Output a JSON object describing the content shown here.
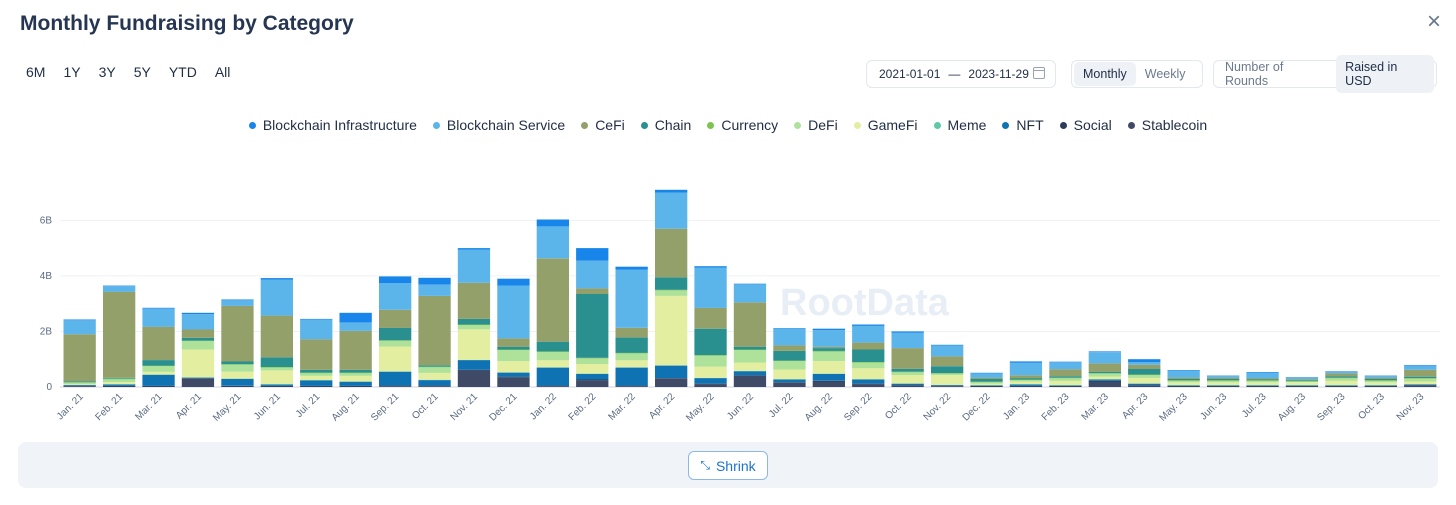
{
  "header": {
    "title": "Monthly Fundraising by Category",
    "close_icon": "×"
  },
  "ranges": [
    "6M",
    "1Y",
    "3Y",
    "5Y",
    "YTD",
    "All"
  ],
  "date_range": {
    "start": "2021-01-01",
    "separator": "—",
    "end": "2023-11-29"
  },
  "interval": {
    "monthly": "Monthly",
    "weekly": "Weekly",
    "selected": "Monthly"
  },
  "metric": {
    "rounds": "Number of Rounds",
    "usd": "Raised in USD",
    "selected": "Raised in USD"
  },
  "watermark": "RootData",
  "footer": {
    "shrink_label": "Shrink",
    "shrink_icon": "⤡"
  },
  "chart_data": {
    "type": "stacked-bar",
    "title": "Monthly Fundraising by Category",
    "xlabel": "",
    "ylabel": "",
    "ylim": [
      0,
      7200000000
    ],
    "yticks": [
      0,
      2000000000,
      4000000000,
      6000000000
    ],
    "ytick_labels": [
      "0",
      "2B",
      "4B",
      "6B"
    ],
    "categories": [
      "Jan. 21",
      "Feb. 21",
      "Mar. 21",
      "Apr. 21",
      "May. 21",
      "Jun. 21",
      "Jul. 21",
      "Aug. 21",
      "Sep. 21",
      "Oct. 21",
      "Nov. 21",
      "Dec. 21",
      "Jan. 22",
      "Feb. 22",
      "Mar. 22",
      "Apr. 22",
      "May. 22",
      "Jun. 22",
      "Jul. 22",
      "Aug. 22",
      "Sep. 22",
      "Oct. 22",
      "Nov. 22",
      "Dec. 22",
      "Jan. 23",
      "Feb. 23",
      "Mar. 23",
      "Apr. 23",
      "May. 23",
      "Jun. 23",
      "Jul. 23",
      "Aug. 23",
      "Sep. 23",
      "Oct. 23",
      "Nov. 23"
    ],
    "series": [
      {
        "name": "Stablecoin",
        "color": "#3f4a66",
        "values": [
          0.03,
          0.02,
          0.02,
          0.3,
          0.02,
          0.02,
          0.02,
          0.02,
          0.03,
          0.03,
          0.6,
          0.35,
          0.03,
          0.25,
          0.03,
          0.3,
          0.1,
          0.4,
          0.15,
          0.2,
          0.1,
          0.05,
          0.03,
          0.02,
          0.02,
          0.02,
          0.2,
          0.05,
          0.02,
          0.02,
          0.02,
          0.02,
          0.02,
          0.02,
          0.05
        ]
      },
      {
        "name": "Social",
        "color": "#2d3c5a",
        "values": [
          0.02,
          0.02,
          0.02,
          0.02,
          0.02,
          0.02,
          0.02,
          0.02,
          0.02,
          0.02,
          0.02,
          0.02,
          0.02,
          0.02,
          0.02,
          0.02,
          0.02,
          0.02,
          0.02,
          0.02,
          0.02,
          0.02,
          0.02,
          0.02,
          0.02,
          0.02,
          0.02,
          0.02,
          0.02,
          0.02,
          0.02,
          0.02,
          0.02,
          0.02,
          0.02
        ]
      },
      {
        "name": "NFT",
        "color": "#0f73b3",
        "values": [
          0.02,
          0.05,
          0.4,
          0.02,
          0.25,
          0.05,
          0.2,
          0.15,
          0.5,
          0.2,
          0.35,
          0.15,
          0.65,
          0.2,
          0.65,
          0.45,
          0.2,
          0.15,
          0.1,
          0.25,
          0.15,
          0.05,
          0.02,
          0.02,
          0.05,
          0.02,
          0.05,
          0.05,
          0.02,
          0.02,
          0.02,
          0.02,
          0.02,
          0.02,
          0.02
        ]
      },
      {
        "name": "Meme",
        "color": "#5ec8a8",
        "values": [
          0.01,
          0.01,
          0.01,
          0.01,
          0.01,
          0.01,
          0.01,
          0.01,
          0.01,
          0.01,
          0.01,
          0.01,
          0.01,
          0.01,
          0.01,
          0.01,
          0.01,
          0.01,
          0.01,
          0.01,
          0.01,
          0.01,
          0.01,
          0.01,
          0.01,
          0.01,
          0.01,
          0.01,
          0.01,
          0.01,
          0.01,
          0.01,
          0.01,
          0.01,
          0.01
        ]
      },
      {
        "name": "GameFi",
        "color": "#e3eea0",
        "values": [
          0.02,
          0.08,
          0.1,
          1.0,
          0.25,
          0.5,
          0.15,
          0.2,
          0.9,
          0.25,
          1.1,
          0.4,
          0.25,
          0.35,
          0.25,
          2.5,
          0.4,
          0.3,
          0.35,
          0.45,
          0.4,
          0.3,
          0.35,
          0.05,
          0.1,
          0.15,
          0.1,
          0.2,
          0.1,
          0.1,
          0.1,
          0.1,
          0.15,
          0.1,
          0.1
        ]
      },
      {
        "name": "DeFi",
        "color": "#aee29a",
        "values": [
          0.05,
          0.1,
          0.2,
          0.3,
          0.25,
          0.1,
          0.1,
          0.1,
          0.2,
          0.2,
          0.15,
          0.4,
          0.3,
          0.2,
          0.25,
          0.2,
          0.4,
          0.45,
          0.3,
          0.35,
          0.2,
          0.1,
          0.05,
          0.05,
          0.05,
          0.1,
          0.1,
          0.1,
          0.05,
          0.05,
          0.05,
          0.03,
          0.1,
          0.05,
          0.1
        ]
      },
      {
        "name": "Currency",
        "color": "#7ac44f",
        "values": [
          0.02,
          0.02,
          0.02,
          0.02,
          0.02,
          0.02,
          0.02,
          0.02,
          0.02,
          0.02,
          0.02,
          0.02,
          0.02,
          0.02,
          0.02,
          0.02,
          0.02,
          0.02,
          0.02,
          0.02,
          0.02,
          0.02,
          0.02,
          0.02,
          0.02,
          0.02,
          0.02,
          0.02,
          0.02,
          0.02,
          0.02,
          0.02,
          0.02,
          0.02,
          0.02
        ]
      },
      {
        "name": "Chain",
        "color": "#2a8f8f",
        "values": [
          0.03,
          0.03,
          0.2,
          0.1,
          0.1,
          0.35,
          0.1,
          0.1,
          0.45,
          0.05,
          0.2,
          0.1,
          0.35,
          2.3,
          0.55,
          0.45,
          0.95,
          0.1,
          0.35,
          0.1,
          0.45,
          0.1,
          0.25,
          0.1,
          0.05,
          0.05,
          0.05,
          0.2,
          0.05,
          0.05,
          0.03,
          0.03,
          0.05,
          0.05,
          0.05
        ]
      },
      {
        "name": "CeFi",
        "color": "#93a06a",
        "values": [
          1.7,
          3.1,
          1.2,
          0.3,
          2.0,
          1.5,
          1.1,
          1.4,
          0.65,
          2.5,
          1.3,
          0.3,
          3.0,
          0.2,
          0.35,
          1.75,
          0.75,
          1.6,
          0.2,
          0.05,
          0.25,
          0.75,
          0.35,
          0.05,
          0.1,
          0.25,
          0.3,
          0.15,
          0.05,
          0.05,
          0.05,
          0.03,
          0.1,
          0.05,
          0.25
        ]
      },
      {
        "name": "Blockchain Service",
        "color": "#5cb5ea",
        "values": [
          0.5,
          0.2,
          0.65,
          0.55,
          0.2,
          1.3,
          0.7,
          0.3,
          0.95,
          0.4,
          1.2,
          1.9,
          1.15,
          1.0,
          2.1,
          1.3,
          1.45,
          0.65,
          0.6,
          0.6,
          0.6,
          0.55,
          0.4,
          0.15,
          0.45,
          0.25,
          0.4,
          0.1,
          0.25,
          0.05,
          0.2,
          0.05,
          0.05,
          0.05,
          0.15
        ]
      },
      {
        "name": "Blockchain Infrastructure",
        "color": "#1785ea",
        "values": [
          0.03,
          0.02,
          0.03,
          0.05,
          0.03,
          0.05,
          0.03,
          0.35,
          0.25,
          0.25,
          0.05,
          0.25,
          0.25,
          0.45,
          0.1,
          0.1,
          0.05,
          0.02,
          0.02,
          0.05,
          0.05,
          0.05,
          0.02,
          0.02,
          0.05,
          0.02,
          0.03,
          0.1,
          0.02,
          0.02,
          0.02,
          0.02,
          0.02,
          0.02,
          0.02
        ]
      }
    ],
    "units": "billions USD",
    "legend": [
      "Blockchain Infrastructure",
      "Blockchain Service",
      "CeFi",
      "Chain",
      "Currency",
      "DeFi",
      "GameFi",
      "Meme",
      "NFT",
      "Social",
      "Stablecoin"
    ],
    "legend_colors": [
      "#1785ea",
      "#5cb5ea",
      "#93a06a",
      "#2a8f8f",
      "#7ac44f",
      "#aee29a",
      "#e3eea0",
      "#5ec8a8",
      "#0f73b3",
      "#2d3c5a",
      "#3f4a66"
    ],
    "legend_position": "top-center",
    "grid": true
  }
}
